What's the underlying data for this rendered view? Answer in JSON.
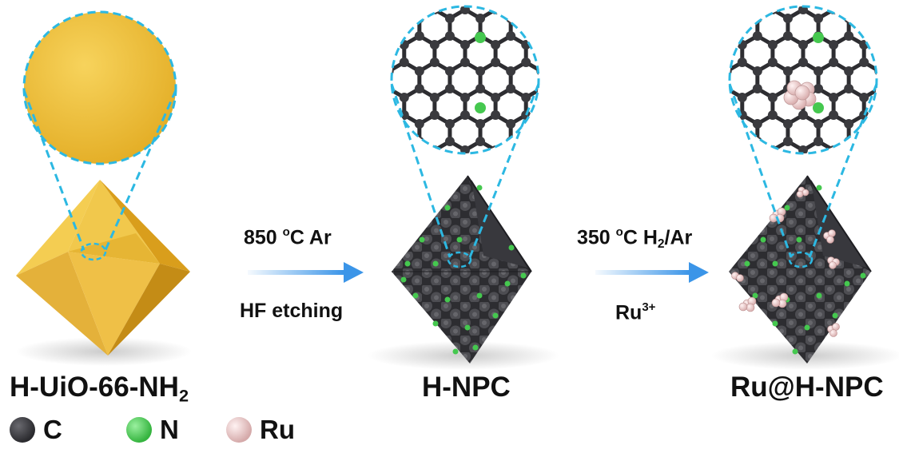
{
  "stages": [
    {
      "label_main": "H-UiO-66-NH",
      "label_sub": "2"
    },
    {
      "label_main": "H-NPC"
    },
    {
      "label_main": "Ru@H-NPC"
    }
  ],
  "steps": [
    {
      "top_main": "850 ",
      "top_sup": "o",
      "top_rest": "C Ar",
      "bottom_main": "HF etching"
    },
    {
      "top_main": "350 ",
      "top_sup": "o",
      "top_mid": "C H",
      "top_sub": "2",
      "top_rest": "/Ar",
      "bottom_main": "Ru",
      "bottom_sup": "3+"
    }
  ],
  "legend": [
    {
      "label": "C",
      "icon": "carbon-atom-icon",
      "color": "#3a3a3e"
    },
    {
      "label": "N",
      "icon": "nitrogen-atom-icon",
      "color": "#45c84f"
    },
    {
      "label": "Ru",
      "icon": "ruthenium-atom-icon",
      "color": "#e6c4c4"
    }
  ],
  "colors": {
    "gold": "#e8b833",
    "dashed": "#2cb8e2",
    "arrow": "#3b95e8",
    "carbon": "#3a3a3e",
    "nitrogen": "#45c84f",
    "ruthenium": "#e6c4c4"
  }
}
